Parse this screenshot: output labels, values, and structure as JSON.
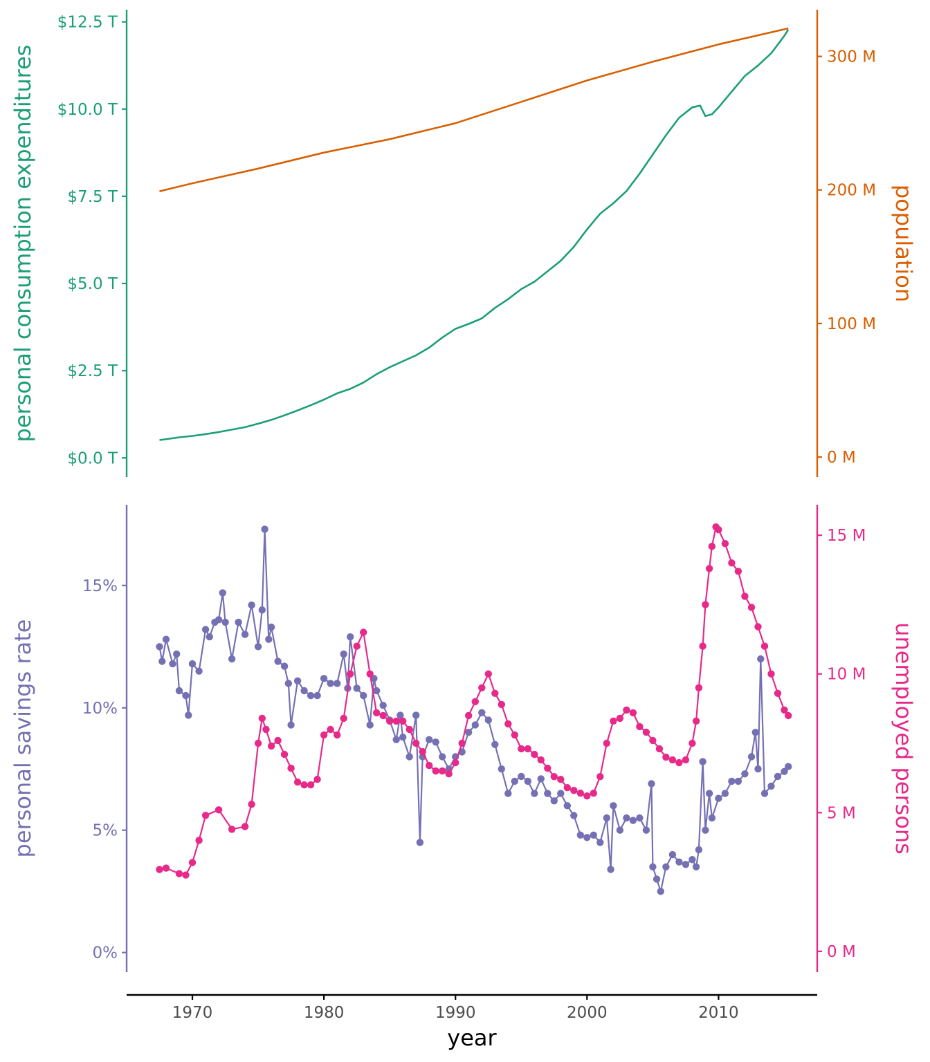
{
  "colors": {
    "pce": "#1b9e77",
    "pop": "#d95f02",
    "psavert": "#7570b3",
    "unemploy": "#e7298a",
    "axis": "#000000",
    "text_dark": "#4d4d4d"
  },
  "x_axis": {
    "title": "year",
    "range": [
      1965,
      2017.5
    ],
    "ticks": [
      {
        "value": 1970,
        "label": "1970"
      },
      {
        "value": 1980,
        "label": "1980"
      },
      {
        "value": 1990,
        "label": "1990"
      },
      {
        "value": 2000,
        "label": "2000"
      },
      {
        "value": 2010,
        "label": "2010"
      }
    ]
  },
  "chart_data": [
    {
      "type": "line",
      "panel": "top",
      "x_title": "year",
      "left_axis": {
        "title": "personal consumption expenditures",
        "range": [
          -0.55,
          12.85
        ],
        "ticks": [
          {
            "value": 0,
            "label": "$0.0 T"
          },
          {
            "value": 2.5,
            "label": "$2.5 T"
          },
          {
            "value": 5,
            "label": "$5.0 T"
          },
          {
            "value": 7.5,
            "label": "$7.5 T"
          },
          {
            "value": 10,
            "label": "$10.0 T"
          },
          {
            "value": 12.5,
            "label": "$12.5 T"
          }
        ]
      },
      "right_axis": {
        "title": "population",
        "range": [
          -15,
          335
        ],
        "ticks": [
          {
            "value": 0,
            "label": "0 M"
          },
          {
            "value": 100,
            "label": "100 M"
          },
          {
            "value": 200,
            "label": "200 M"
          },
          {
            "value": 300,
            "label": "300 M"
          }
        ]
      },
      "grid": false,
      "series": [
        {
          "axis": "left",
          "x": [
            1967.5,
            1969,
            1970,
            1971,
            1972,
            1973,
            1974,
            1975,
            1976,
            1977,
            1978,
            1979,
            1980,
            1981,
            1982,
            1983,
            1984,
            1985,
            1986,
            1987,
            1988,
            1989,
            1990,
            1991,
            1992,
            1993,
            1994,
            1995,
            1996,
            1997,
            1998,
            1999,
            2000,
            2001,
            2002,
            2003,
            2004,
            2005,
            2006,
            2007,
            2008,
            2008.6,
            2009,
            2009.5,
            2010,
            2011,
            2012,
            2013,
            2014,
            2015,
            2015.3
          ],
          "values": [
            0.51,
            0.59,
            0.63,
            0.68,
            0.74,
            0.81,
            0.88,
            0.98,
            1.09,
            1.22,
            1.36,
            1.51,
            1.67,
            1.85,
            1.98,
            2.16,
            2.4,
            2.6,
            2.77,
            2.94,
            3.16,
            3.45,
            3.7,
            3.84,
            4.0,
            4.3,
            4.55,
            4.84,
            5.05,
            5.35,
            5.65,
            6.05,
            6.55,
            7.0,
            7.3,
            7.65,
            8.15,
            8.7,
            9.25,
            9.75,
            10.05,
            10.1,
            9.8,
            9.85,
            10.05,
            10.5,
            10.95,
            11.25,
            11.6,
            12.1,
            12.28
          ]
        },
        {
          "axis": "right",
          "x": [
            1967.5,
            1970,
            1975,
            1980,
            1985,
            1990,
            1995,
            2000,
            2005,
            2010,
            2015.3
          ],
          "values": [
            199,
            205,
            216,
            228,
            238,
            250,
            266,
            282,
            296,
            309,
            321
          ]
        }
      ]
    },
    {
      "type": "line",
      "panel": "bottom",
      "x_title": "year",
      "left_axis": {
        "title": "personal savings rate",
        "range": [
          -0.8,
          18.3
        ],
        "ticks": [
          {
            "value": 0,
            "label": "0%"
          },
          {
            "value": 5,
            "label": "5%"
          },
          {
            "value": 10,
            "label": "10%"
          },
          {
            "value": 15,
            "label": "15%"
          }
        ]
      },
      "right_axis": {
        "title": "unemployed persons",
        "range": [
          -0.75,
          16.1
        ],
        "ticks": [
          {
            "value": 0,
            "label": "0 M"
          },
          {
            "value": 5,
            "label": "5 M"
          },
          {
            "value": 10,
            "label": "10 M"
          },
          {
            "value": 15,
            "label": "15 M"
          }
        ]
      },
      "grid": false,
      "series": [
        {
          "axis": "left",
          "x": [
            1967.5,
            1967.7,
            1968,
            1968.5,
            1968.8,
            1969,
            1969.5,
            1969.7,
            1970,
            1970.5,
            1971,
            1971.3,
            1971.7,
            1972,
            1972.3,
            1972.5,
            1973,
            1973.5,
            1974,
            1974.5,
            1975,
            1975.3,
            1975.5,
            1975.8,
            1976,
            1976.5,
            1977,
            1977.3,
            1977.5,
            1978,
            1978.5,
            1979,
            1979.5,
            1980,
            1980.5,
            1981,
            1981.5,
            1981.8,
            1982,
            1982.5,
            1983,
            1983.5,
            1983.8,
            1984,
            1984.5,
            1985,
            1985.5,
            1985.8,
            1986,
            1986.5,
            1987,
            1987.3,
            1987.5,
            1988,
            1988.5,
            1989,
            1989.5,
            1990,
            1990.5,
            1991,
            1991.5,
            1992,
            1992.5,
            1993,
            1993.5,
            1994,
            1994.5,
            1995,
            1995.5,
            1996,
            1996.5,
            1997,
            1997.5,
            1998,
            1998.5,
            1999,
            1999.5,
            2000,
            2000.5,
            2001,
            2001.5,
            2001.8,
            2002,
            2002.5,
            2003,
            2003.5,
            2004,
            2004.5,
            2004.9,
            2005,
            2005.3,
            2005.6,
            2006,
            2006.5,
            2007,
            2007.5,
            2008,
            2008.3,
            2008.5,
            2008.8,
            2009,
            2009.3,
            2009.5,
            2010,
            2010.5,
            2011,
            2011.5,
            2012,
            2012.5,
            2012.8,
            2013,
            2013.2,
            2013.5,
            2014,
            2014.5,
            2015,
            2015.3
          ],
          "values": [
            12.5,
            11.9,
            12.8,
            11.8,
            12.2,
            10.7,
            10.5,
            9.7,
            11.8,
            11.5,
            13.2,
            12.9,
            13.5,
            13.6,
            14.7,
            13.5,
            12.0,
            13.5,
            13.0,
            14.2,
            12.5,
            14.0,
            17.3,
            12.8,
            13.3,
            11.9,
            11.7,
            11.0,
            9.3,
            11.1,
            10.7,
            10.5,
            10.5,
            11.2,
            11.0,
            11.0,
            12.2,
            10.8,
            12.9,
            10.8,
            10.5,
            9.3,
            11.2,
            10.7,
            10.1,
            9.5,
            8.7,
            9.7,
            8.8,
            8.0,
            9.7,
            4.5,
            8.0,
            8.7,
            8.6,
            8.0,
            7.5,
            8.0,
            8.2,
            9.0,
            9.3,
            9.8,
            9.5,
            8.5,
            7.5,
            6.5,
            7.0,
            7.2,
            7.0,
            6.5,
            7.1,
            6.5,
            6.2,
            6.5,
            6.0,
            5.6,
            4.8,
            4.7,
            4.8,
            4.5,
            5.5,
            3.4,
            6.0,
            5.0,
            5.5,
            5.4,
            5.5,
            5.0,
            6.9,
            3.5,
            3.0,
            2.5,
            3.5,
            4.0,
            3.7,
            3.6,
            3.8,
            3.5,
            4.2,
            7.8,
            5.0,
            6.5,
            5.5,
            6.3,
            6.5,
            7.0,
            7.0,
            7.3,
            8.0,
            9.0,
            7.5,
            12.0,
            6.5,
            6.8,
            7.2,
            7.4,
            7.6
          ]
        },
        {
          "axis": "right",
          "x": [
            1967.5,
            1968,
            1969,
            1969.5,
            1970,
            1970.5,
            1971,
            1972,
            1973,
            1974,
            1974.5,
            1975,
            1975.3,
            1975.6,
            1976,
            1976.5,
            1977,
            1977.5,
            1978,
            1978.5,
            1979,
            1979.5,
            1980,
            1980.5,
            1981,
            1981.5,
            1982,
            1982.5,
            1983,
            1983.5,
            1984,
            1984.5,
            1985,
            1985.5,
            1986,
            1986.5,
            1987,
            1987.5,
            1988,
            1988.5,
            1989,
            1989.5,
            1990,
            1990.5,
            1991,
            1991.5,
            1992,
            1992.5,
            1993,
            1993.5,
            1994,
            1994.5,
            1995,
            1995.5,
            1996,
            1996.5,
            1997,
            1997.5,
            1998,
            1998.5,
            1999,
            1999.5,
            2000,
            2000.5,
            2001,
            2001.5,
            2002,
            2002.5,
            2003,
            2003.5,
            2004,
            2004.5,
            2005,
            2005.5,
            2006,
            2006.5,
            2007,
            2007.5,
            2008,
            2008.3,
            2008.5,
            2008.8,
            2009,
            2009.3,
            2009.5,
            2009.8,
            2010,
            2010.5,
            2011,
            2011.5,
            2012,
            2012.5,
            2013,
            2013.5,
            2014,
            2014.5,
            2015,
            2015.3
          ],
          "values": [
            2.95,
            3.0,
            2.8,
            2.75,
            3.2,
            4.0,
            4.9,
            5.1,
            4.4,
            4.5,
            5.3,
            7.5,
            8.4,
            8.0,
            7.4,
            7.6,
            7.1,
            6.6,
            6.1,
            6.0,
            6.0,
            6.2,
            7.8,
            8.0,
            7.8,
            8.4,
            10.0,
            11.0,
            11.5,
            10.0,
            8.6,
            8.5,
            8.3,
            8.3,
            8.3,
            8.0,
            7.5,
            7.2,
            6.7,
            6.5,
            6.5,
            6.4,
            6.8,
            7.5,
            8.5,
            9.0,
            9.5,
            10.0,
            9.3,
            8.9,
            8.2,
            7.8,
            7.3,
            7.3,
            7.1,
            6.9,
            6.6,
            6.3,
            6.2,
            5.9,
            5.8,
            5.7,
            5.6,
            5.7,
            6.3,
            7.5,
            8.3,
            8.4,
            8.7,
            8.6,
            8.1,
            7.9,
            7.6,
            7.3,
            7.0,
            6.9,
            6.8,
            6.9,
            7.5,
            8.3,
            9.5,
            11.0,
            12.5,
            13.8,
            14.6,
            15.3,
            15.2,
            14.7,
            14.0,
            13.7,
            12.8,
            12.4,
            11.7,
            11.0,
            10.0,
            9.3,
            8.7,
            8.5
          ]
        }
      ]
    }
  ]
}
